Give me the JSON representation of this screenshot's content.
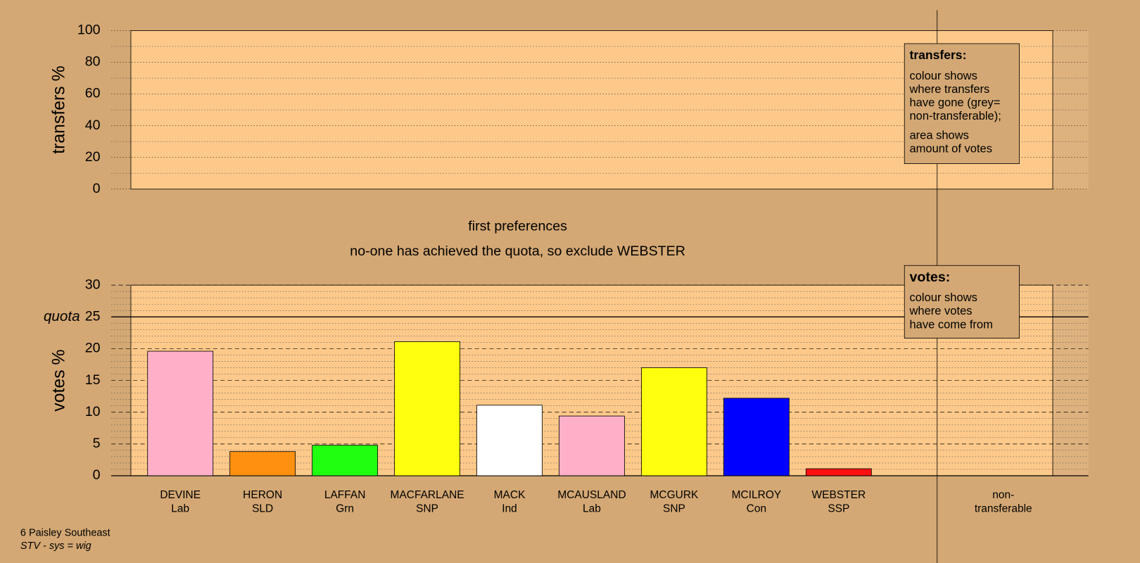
{
  "chart_data": [
    {
      "type": "bar",
      "ylabel": "transfers %",
      "ylim": [
        0,
        100
      ],
      "yticks": [
        0,
        20,
        40,
        60,
        80,
        100
      ],
      "minor_yticks": [
        10,
        30,
        50,
        70,
        90
      ],
      "grid": true,
      "legend": {
        "title": "transfers:",
        "notes": [
          [
            "colour shows",
            "where transfers",
            "have gone (grey=",
            "non-transferable);"
          ],
          [
            "area shows",
            "amount of votes"
          ]
        ]
      }
    },
    {
      "type": "bar",
      "title": "first preferences",
      "subtitle": "no-one has achieved the quota, so exclude WEBSTER",
      "ylabel": "votes %",
      "ylim": [
        0,
        30
      ],
      "yticks": [
        0,
        5,
        10,
        15,
        20,
        25,
        30
      ],
      "minor_yticks": [
        1,
        2,
        3,
        4,
        6,
        7,
        8,
        9,
        11,
        12,
        13,
        14,
        16,
        17,
        18,
        19,
        21,
        22,
        23,
        24,
        26,
        27,
        28,
        29
      ],
      "grid": true,
      "quota": {
        "label": "quota",
        "value": 25
      },
      "categories": [
        "DEVINE",
        "HERON",
        "LAFFAN",
        "MACFARLANE",
        "MACK",
        "MCAUSLAND",
        "MCGURK",
        "MCILROY",
        "WEBSTER",
        "non-"
      ],
      "parties": [
        "Lab",
        "SLD",
        "Grn",
        "SNP",
        "Ind",
        "Lab",
        "SNP",
        "Con",
        "SSP",
        "transferable"
      ],
      "values": [
        19.6,
        3.8,
        4.8,
        21.1,
        11.1,
        9.4,
        17.0,
        12.2,
        1.1,
        null
      ],
      "colors": [
        "#ffb0c8",
        "#ff9010",
        "#20ff10",
        "#ffff10",
        "#ffffff",
        "#ffb0c8",
        "#ffff10",
        "#0000ff",
        "#ff1010",
        null
      ],
      "legend": {
        "title": "votes:",
        "notes": [
          [
            "colour shows",
            "where votes",
            "have come from"
          ]
        ]
      }
    }
  ],
  "footer": {
    "place": "6 Paisley Southeast",
    "system": "STV - sys = wig"
  }
}
